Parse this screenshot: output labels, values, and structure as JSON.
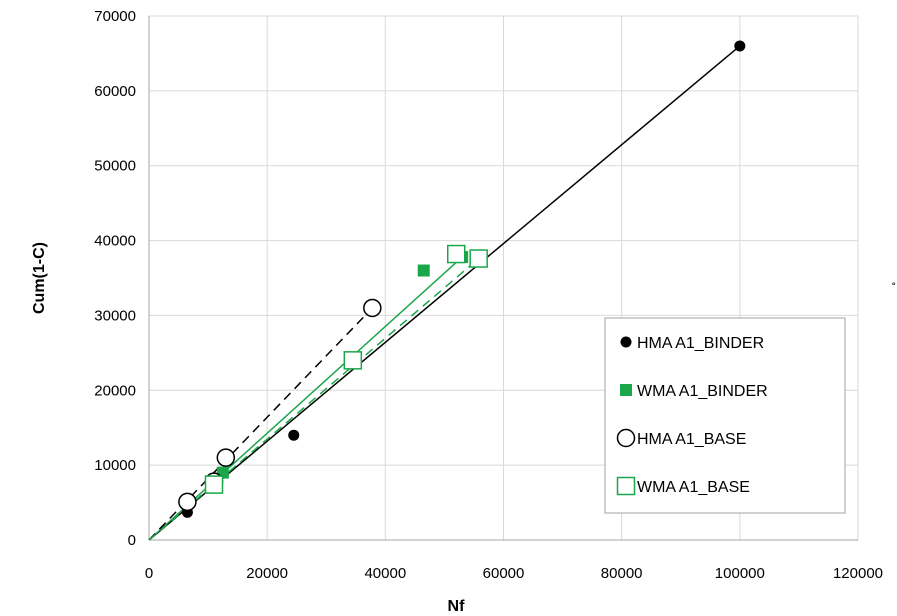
{
  "chart_data": {
    "type": "scatter",
    "title": "",
    "xlabel": "Nf",
    "ylabel": "Cum(1-C)",
    "xlim": [
      0,
      120000
    ],
    "ylim": [
      0,
      70000
    ],
    "x_ticks": [
      "0",
      "20000",
      "40000",
      "60000",
      "80000",
      "100000",
      "120000"
    ],
    "y_ticks": [
      "0",
      "10000",
      "20000",
      "30000",
      "40000",
      "50000",
      "60000",
      "70000"
    ],
    "grid": true,
    "legend_position": "right",
    "series": [
      {
        "name": "HMA A1_BINDER",
        "marker": "filled-circle",
        "color": "#000000",
        "points": [
          [
            6500,
            3700
          ],
          [
            24500,
            14000
          ],
          [
            100000,
            66000
          ]
        ],
        "trendline": {
          "style": "solid",
          "from": [
            0,
            0
          ],
          "to": [
            100000,
            66000
          ]
        }
      },
      {
        "name": "WMA A1_BINDER",
        "marker": "filled-square",
        "color": "#1aa64a",
        "points": [
          [
            12500,
            9000
          ],
          [
            46500,
            36000
          ],
          [
            53000,
            37800
          ]
        ],
        "trendline": {
          "style": "solid",
          "from": [
            0,
            0
          ],
          "to": [
            53000,
            37800
          ]
        }
      },
      {
        "name": "HMA A1_BASE",
        "marker": "open-circle",
        "color": "#000000",
        "points": [
          [
            6500,
            5100
          ],
          [
            11000,
            7800
          ],
          [
            13000,
            11000
          ],
          [
            37800,
            31000
          ]
        ],
        "trendline": {
          "style": "dashed",
          "from": [
            0,
            0
          ],
          "to": [
            37800,
            31000
          ]
        }
      },
      {
        "name": "WMA A1_BASE",
        "marker": "open-square",
        "color": "#1aa64a",
        "points": [
          [
            11000,
            7400
          ],
          [
            34500,
            24000
          ],
          [
            52000,
            38200
          ],
          [
            55800,
            37600
          ]
        ],
        "trendline": {
          "style": "dashed",
          "from": [
            0,
            0
          ],
          "to": [
            55800,
            37600
          ]
        }
      }
    ]
  },
  "stray_mark": "˚"
}
